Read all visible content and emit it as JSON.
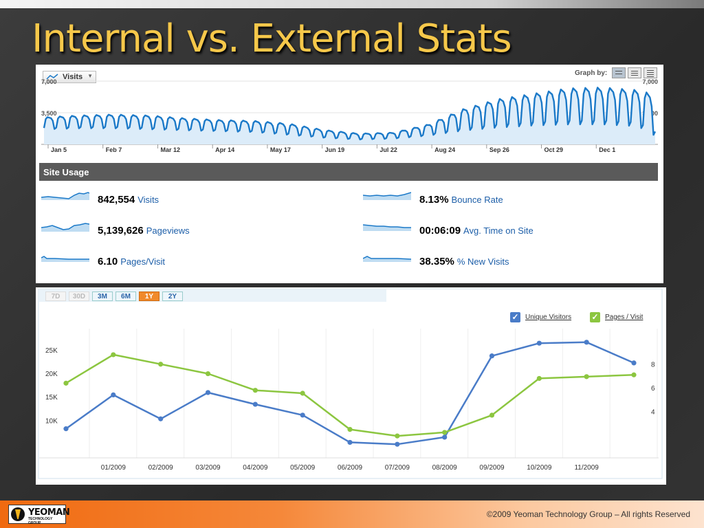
{
  "slide": {
    "title": "Internal vs. External Stats",
    "copyright": "©2009 Yeoman Technology Group – All rights Reserved",
    "logo_text": "YEOMAN",
    "logo_subtext": "TECHNOLOGY GROUP",
    "accent_title": "#f6c84a",
    "accent_footer": "#f06a10"
  },
  "analytics": {
    "dropdown_label": "Visits",
    "graph_by_label": "Graph by:",
    "site_usage_title": "Site Usage",
    "metrics": [
      {
        "value": "842,554",
        "label": "Visits"
      },
      {
        "value": "5,139,626",
        "label": "Pageviews"
      },
      {
        "value": "6.10",
        "label": "Pages/Visit"
      },
      {
        "value": "8.13%",
        "label": "Bounce Rate"
      },
      {
        "value": "00:06:09",
        "label": "Avg. Time on Site"
      },
      {
        "value": "38.35%",
        "label": "% New Visits"
      }
    ]
  },
  "external": {
    "range_tabs": [
      {
        "label": "7D",
        "state": "disabled"
      },
      {
        "label": "30D",
        "state": "disabled"
      },
      {
        "label": "3M",
        "state": "normal"
      },
      {
        "label": "6M",
        "state": "normal"
      },
      {
        "label": "1Y",
        "state": "active"
      },
      {
        "label": "2Y",
        "state": "normal"
      }
    ],
    "legend": [
      {
        "label": "Unique Visitors",
        "color": "#4a7cc8"
      },
      {
        "label": "Pages / Visit",
        "color": "#8cc640"
      }
    ]
  },
  "chart_data": [
    {
      "type": "line",
      "series": [
        {
          "name": "Visits",
          "color": "#1b79c8"
        }
      ],
      "ylim": [
        0,
        7000
      ],
      "y_ticks": [
        {
          "value": 3500,
          "label": "3,500"
        },
        {
          "value": 7000,
          "label": "7,000"
        }
      ],
      "x_ticks": [
        "Jan 5",
        "Feb 7",
        "Mar 12",
        "Apr 14",
        "May 17",
        "Jun 19",
        "Jul 22",
        "Aug 24",
        "Sep 26",
        "Oct 29",
        "Dec 1"
      ],
      "envelope": {
        "days": [
          0,
          20,
          40,
          60,
          80,
          100,
          120,
          140,
          160,
          180,
          200,
          220,
          240,
          260,
          280,
          300,
          320,
          340,
          350
        ],
        "high": [
          3000,
          3200,
          3300,
          3200,
          2900,
          2700,
          2600,
          2300,
          1600,
          1200,
          1300,
          2200,
          3900,
          5000,
          5600,
          6200,
          6300,
          6000,
          5500
        ],
        "low": [
          1600,
          1700,
          1700,
          1600,
          1500,
          1400,
          1300,
          1000,
          700,
          500,
          600,
          900,
          1400,
          1700,
          1900,
          2000,
          2000,
          1800,
          700
        ]
      }
    },
    {
      "type": "line",
      "categories": [
        "",
        "01/2009",
        "02/2009",
        "03/2009",
        "04/2009",
        "05/2009",
        "06/2009",
        "07/2009",
        "08/2009",
        "09/2009",
        "10/2009",
        "11/2009",
        ""
      ],
      "series": [
        {
          "name": "Unique Visitors",
          "axis": "left",
          "color": "#4a7cc8",
          "values": [
            8200,
            15400,
            10300,
            15900,
            13400,
            11100,
            5300,
            4900,
            6400,
            23700,
            26400,
            26600,
            22200
          ]
        },
        {
          "name": "Pages / Visit",
          "axis": "right",
          "color": "#8cc640",
          "values": [
            6.4,
            8.8,
            8.0,
            7.2,
            5.8,
            5.55,
            2.5,
            1.95,
            2.25,
            3.7,
            6.8,
            6.95,
            7.1
          ]
        }
      ],
      "y_left": {
        "ticks": [
          {
            "value": 10000,
            "label": "10K"
          },
          {
            "value": 15000,
            "label": "15K"
          },
          {
            "value": 20000,
            "label": "20K"
          },
          {
            "value": 25000,
            "label": "25K"
          }
        ],
        "range": [
          2000,
          29500
        ]
      },
      "y_right": {
        "ticks": [
          {
            "value": 4,
            "label": "4"
          },
          {
            "value": 6,
            "label": "6"
          },
          {
            "value": 8,
            "label": "8"
          }
        ],
        "range": [
          0.1,
          11.0
        ]
      },
      "grid": true,
      "legend": "top-right"
    }
  ]
}
